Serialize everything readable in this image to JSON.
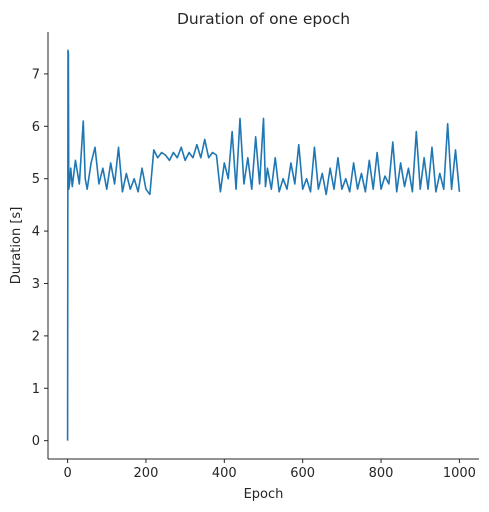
{
  "chart_data": {
    "type": "line",
    "title": "Duration of one epoch",
    "xlabel": "Epoch",
    "ylabel": "Duration [s]",
    "xlim": [
      -50,
      1050
    ],
    "ylim": [
      -0.35,
      7.8
    ],
    "xticks": [
      0,
      200,
      400,
      600,
      800,
      1000
    ],
    "yticks": [
      0,
      1,
      2,
      3,
      4,
      5,
      6,
      7
    ],
    "grid": false,
    "legend": "none",
    "series": [
      {
        "color": "#1f77b4",
        "x": [
          0,
          1,
          2,
          3,
          5,
          8,
          12,
          20,
          30,
          40,
          45,
          50,
          60,
          70,
          80,
          90,
          100,
          110,
          120,
          130,
          140,
          150,
          160,
          170,
          180,
          190,
          200,
          210,
          220,
          230,
          240,
          250,
          260,
          270,
          280,
          290,
          300,
          310,
          320,
          330,
          340,
          350,
          360,
          370,
          380,
          390,
          400,
          410,
          420,
          430,
          440,
          450,
          460,
          470,
          480,
          490,
          500,
          505,
          510,
          520,
          530,
          540,
          550,
          560,
          570,
          580,
          590,
          600,
          610,
          620,
          630,
          640,
          650,
          660,
          670,
          680,
          690,
          700,
          710,
          720,
          730,
          740,
          750,
          760,
          770,
          780,
          790,
          800,
          810,
          820,
          830,
          840,
          850,
          860,
          870,
          880,
          890,
          900,
          910,
          920,
          930,
          940,
          950,
          960,
          970,
          980,
          990,
          1000
        ],
        "values": [
          0.0,
          7.45,
          7.4,
          4.8,
          4.9,
          5.2,
          4.85,
          5.35,
          4.9,
          6.1,
          5.0,
          4.8,
          5.3,
          5.6,
          4.9,
          5.2,
          4.8,
          5.3,
          4.9,
          5.6,
          4.75,
          5.1,
          4.8,
          5.0,
          4.75,
          5.2,
          4.8,
          4.7,
          5.55,
          5.4,
          5.5,
          5.45,
          5.35,
          5.5,
          5.4,
          5.6,
          5.35,
          5.5,
          5.4,
          5.65,
          5.4,
          5.75,
          5.4,
          5.5,
          5.45,
          4.75,
          5.3,
          5.0,
          5.9,
          4.8,
          6.15,
          4.9,
          5.4,
          4.8,
          5.8,
          4.9,
          6.15,
          4.85,
          5.2,
          4.8,
          5.4,
          4.75,
          5.0,
          4.8,
          5.3,
          4.9,
          5.65,
          4.8,
          5.0,
          4.75,
          5.6,
          4.8,
          5.1,
          4.7,
          5.2,
          4.8,
          5.4,
          4.8,
          5.0,
          4.75,
          5.3,
          4.8,
          5.1,
          4.75,
          5.35,
          4.8,
          5.5,
          4.8,
          5.05,
          4.9,
          5.7,
          4.75,
          5.3,
          4.85,
          5.2,
          4.75,
          5.9,
          4.8,
          5.4,
          4.8,
          5.6,
          4.75,
          5.1,
          4.8,
          6.05,
          4.8,
          5.55,
          4.75
        ]
      }
    ]
  }
}
